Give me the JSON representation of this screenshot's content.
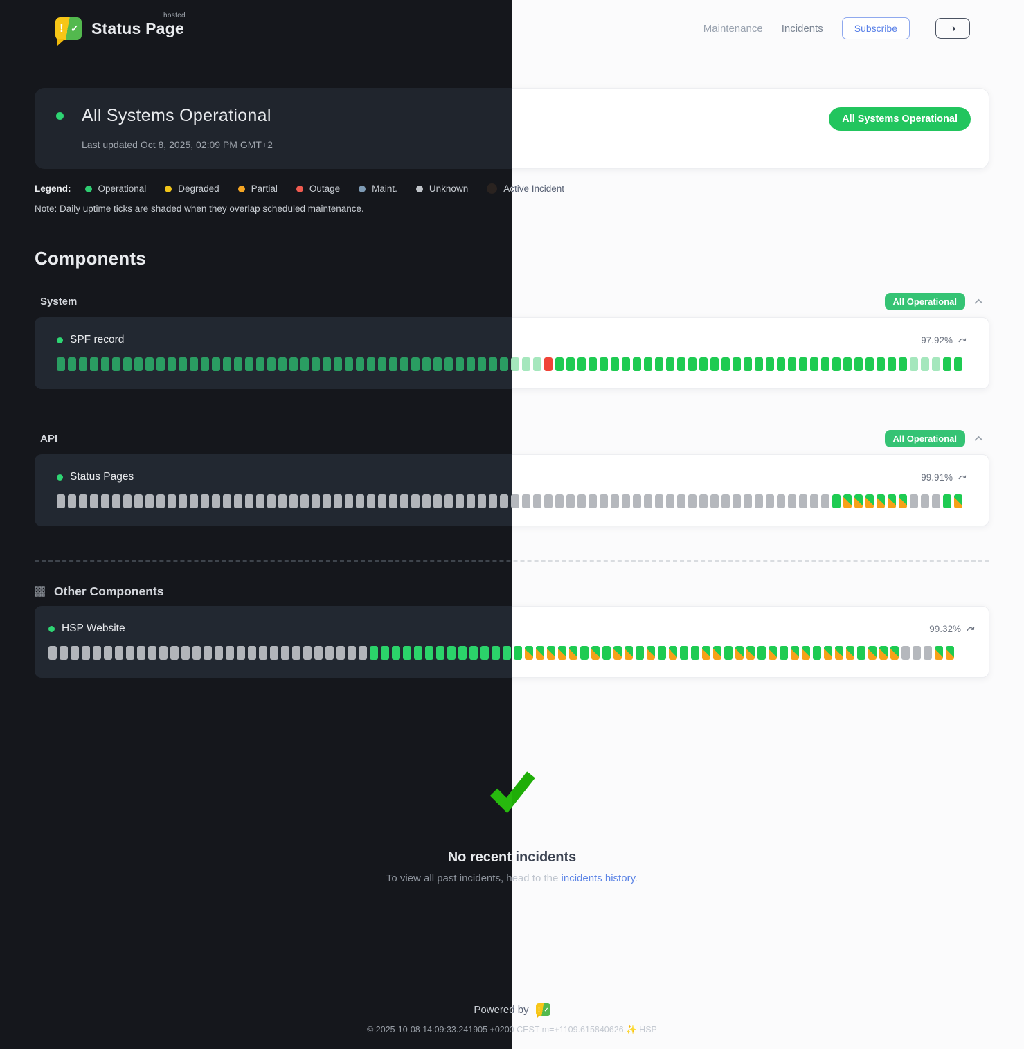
{
  "brand": {
    "status": "Status",
    "page": "Page",
    "hosted": "hosted",
    "bubble_exclaim": "!",
    "bubble_check": "✓"
  },
  "nav": {
    "maintenance": "Maintenance",
    "incidents": "Incidents",
    "subscribe": "Subscribe",
    "theme_icon": "◑"
  },
  "banner": {
    "title": "All Systems Operational",
    "updated": "Last updated Oct 8, 2025, 02:09 PM GMT+2",
    "badge": "All Systems Operational"
  },
  "legend": {
    "label": "Legend:",
    "items": [
      {
        "name": "Operational",
        "color": "#2ecc71"
      },
      {
        "name": "Degraded",
        "color": "#f0c419"
      },
      {
        "name": "Partial",
        "color": "#f5a623"
      },
      {
        "name": "Outage",
        "color": "#f05b50"
      },
      {
        "name": "Maint.",
        "color": "#7d9ab4"
      },
      {
        "name": "Unknown",
        "color": "#c0c4c9"
      },
      {
        "name": "Active Incident",
        "color": "#2a2320"
      }
    ],
    "note": "Note: Daily uptime ticks are shaded when they overlap scheduled maintenance."
  },
  "components_title": "Components",
  "groups": [
    {
      "name": "System",
      "badge": "All Operational",
      "components": [
        {
          "name": "SPF record",
          "uptime": "97.92%",
          "ticks": "gggggggggggggggggggggggggggggggggggggggggppprggggggggggggggggggggggggggggggggpppgg"
        }
      ]
    },
    {
      "name": "API",
      "badge": "All Operational",
      "components": [
        {
          "name": "Status Pages",
          "uptime": "99.91%",
          "ticks": "uuuuuuuuuuuuuuuuuuuuuuuuuuuuuuuuuuuuuuuuuuuuuuuuuuuuuuuuuuuuuuuuuuuuuugmmmmmmuuugm"
        }
      ]
    }
  ],
  "other": {
    "title": "Other Components",
    "components": [
      {
        "name": "HSP Website",
        "uptime": "99.32%",
        "ticks": "uuuuuuuuuuuuuuuuuuuuuuuuuuuuuGGGGGGGGGGGGGGmmmmmGmGmmGmGmGGmmGmmGmGmmGmmmGmmmuuumm"
      }
    ]
  },
  "tick_legend_key": {
    "g": "operational",
    "G": "operational-bright",
    "p": "operational-shaded",
    "r": "outage",
    "u": "unknown",
    "m": "operational-maintenance-overlap"
  },
  "incidents": {
    "none_title": "No recent incidents",
    "none_text_prefix": "To view all past incidents, head to the ",
    "link_text": "incidents history",
    "suffix": "."
  },
  "footer": {
    "powered_by": "Powered by",
    "copyright_prefix": "© 2025-10-08 14:09:33.241905 +0200 CEST m=+1109.615840626",
    "sparkle": "✨",
    "copyright_suffix": "HSP"
  },
  "colors": {
    "accent_green": "#22c55e",
    "badge_green": "#35c374",
    "tick_operational_dark": "#2a9d62",
    "tick_operational_light": "#1ecb52",
    "tick_shaded_pale": "#a5e7bd",
    "tick_outage_red": "#ef4444",
    "tick_unknown_gray": "#b5b8bd",
    "tick_maintenance_orange": "#f7a119",
    "link_blue": "#5d85e6",
    "subscribe_blue": "#5b82e8",
    "logo_yellow": "#f7c617",
    "logo_green": "#53b94e"
  }
}
